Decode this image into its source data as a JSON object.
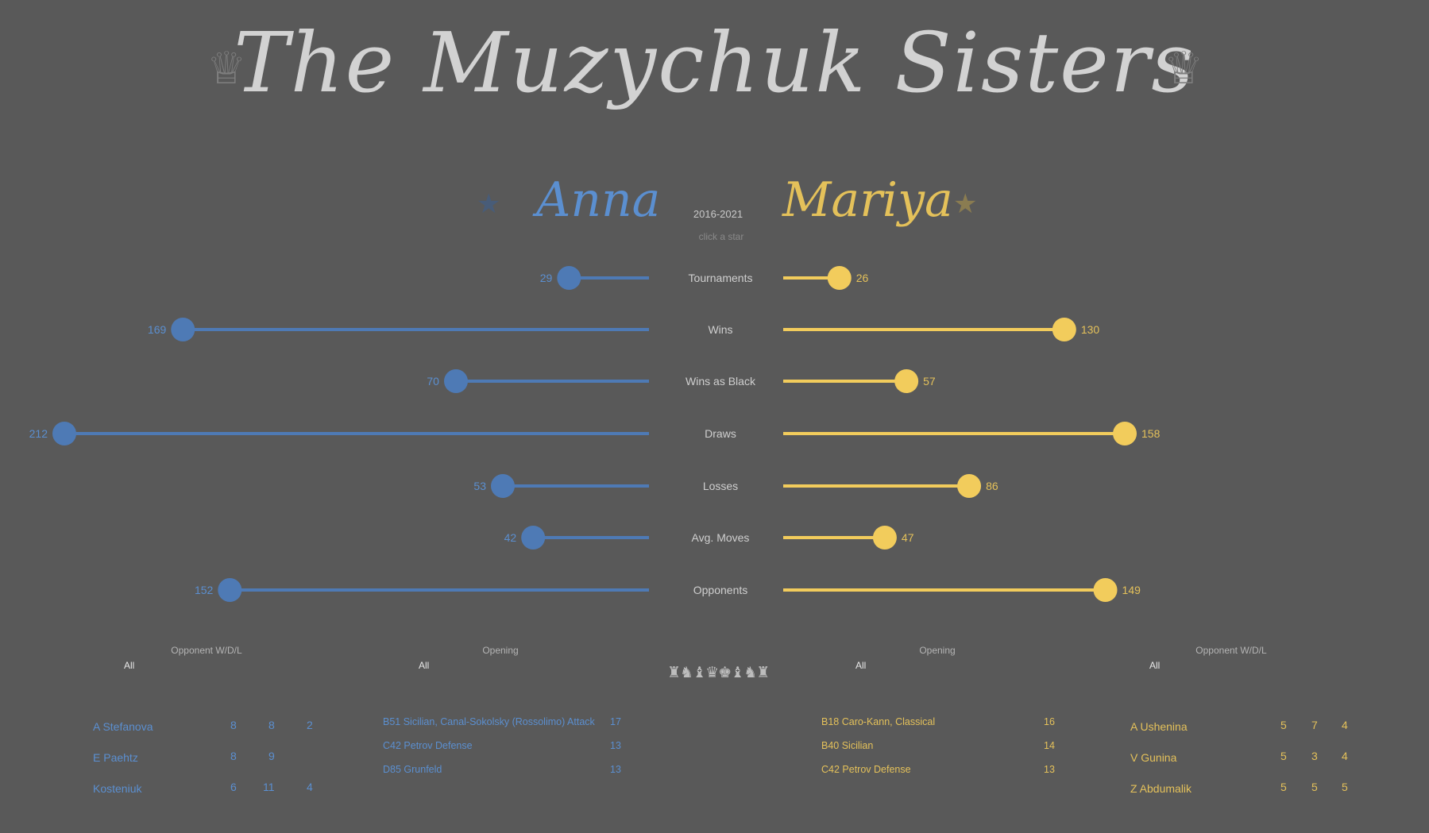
{
  "title": "The Muzychuk Sisters",
  "years": "2016-2021",
  "hint": "click a star",
  "players": {
    "anna": {
      "name": "Anna",
      "color": "#4e7ab5"
    },
    "mariya": {
      "name": "Mariya",
      "color": "#f2cc5c"
    }
  },
  "icons": {
    "crown": "crown-icon",
    "star": "star-icon",
    "pieces": "chess-pieces-icon"
  },
  "chart_data": {
    "type": "dot-bar",
    "categories": [
      "Tournaments",
      "Wins",
      "Wins as Black",
      "Draws",
      "Losses",
      "Avg. Moves",
      "Opponents"
    ],
    "series": [
      {
        "name": "Anna",
        "values": [
          29,
          169,
          70,
          212,
          53,
          42,
          152
        ]
      },
      {
        "name": "Mariya",
        "values": [
          26,
          130,
          57,
          158,
          86,
          47,
          149
        ]
      }
    ],
    "xlim": [
      0,
      212
    ],
    "grid": false
  },
  "filters": {
    "anna_opponent": {
      "label": "Opponent W/D/L",
      "value": "All"
    },
    "anna_opening": {
      "label": "Opening",
      "value": "All"
    },
    "mariya_opening": {
      "label": "Opening",
      "value": "All"
    },
    "mariya_opponent": {
      "label": "Opponent W/D/L",
      "value": "All"
    }
  },
  "anna_opponents": [
    {
      "name": "A Stefanova",
      "w": "8",
      "d": "8",
      "l": "2"
    },
    {
      "name": "E Paehtz",
      "w": "8",
      "d": "9",
      "l": ""
    },
    {
      "name": "Kosteniuk",
      "w": "6",
      "d": "11",
      "l": "4"
    }
  ],
  "anna_openings": [
    {
      "name": "B51 Sicilian, Canal-Sokolsky (Rossolimo) Attack",
      "count": "17"
    },
    {
      "name": "C42 Petrov Defense",
      "count": "13"
    },
    {
      "name": "D85 Grunfeld",
      "count": "13"
    }
  ],
  "mariya_openings": [
    {
      "name": "B18 Caro-Kann, Classical",
      "count": "16"
    },
    {
      "name": "B40 Sicilian",
      "count": "14"
    },
    {
      "name": "C42 Petrov Defense",
      "count": "13"
    }
  ],
  "mariya_opponents": [
    {
      "name": "A Ushenina",
      "w": "5",
      "d": "7",
      "l": "4"
    },
    {
      "name": "V Gunina",
      "w": "5",
      "d": "3",
      "l": "4"
    },
    {
      "name": "Z Abdumalik",
      "w": "5",
      "d": "5",
      "l": "5"
    }
  ]
}
